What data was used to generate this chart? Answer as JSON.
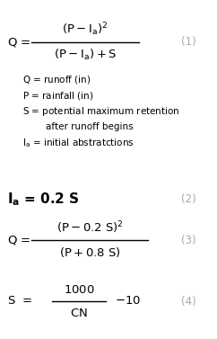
{
  "background_color": "#ffffff",
  "fig_width": 2.42,
  "fig_height": 3.77,
  "dpi": 100,
  "text_color": "#000000",
  "number_color": "#aaaaaa",
  "eq1_label": "(1)",
  "eq2_label": "(2)",
  "eq3_label": "(3)",
  "eq4_label": "(4)",
  "font_size_eq": 9.5,
  "font_size_desc": 7.5,
  "font_size_num": 8.5
}
